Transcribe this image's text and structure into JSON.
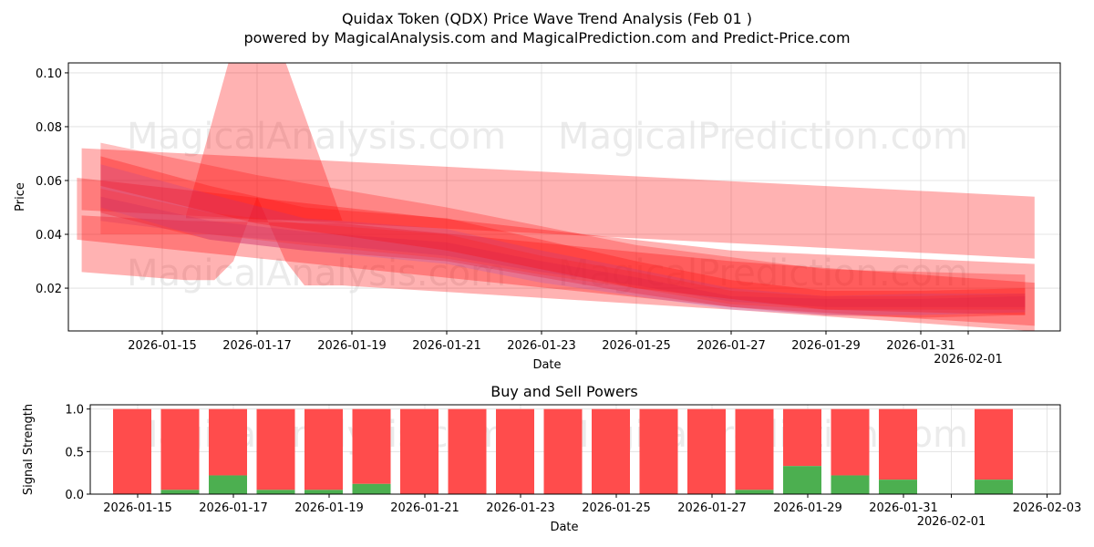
{
  "title": "Quidax Token (QDX) Price Wave Trend Analysis (Feb 01 )",
  "subtitle": "powered by MagicalAnalysis.com and MagicalPrediction.com and Predict-Price.com",
  "watermarks": [
    "MagicalAnalysis.com",
    "MagicalPrediction.com"
  ],
  "chart_data": [
    {
      "type": "area",
      "title": "",
      "xlabel": "Date",
      "ylabel": "Price",
      "ylim": [
        0.0041,
        0.1037
      ],
      "xlim_days_from_2026_01_15": [
        -1.98,
        18.94
      ],
      "yticks": [
        "0.02",
        "0.04",
        "0.06",
        "0.08",
        "0.10"
      ],
      "ytick_values": [
        0.02,
        0.04,
        0.06,
        0.08,
        0.1
      ],
      "xticks": [
        "2026-01-15",
        "2026-01-17",
        "2026-01-19",
        "2026-01-21",
        "2026-01-23",
        "2026-01-25",
        "2026-01-27",
        "2026-01-29",
        "2026-01-31",
        "2026-02-01"
      ],
      "xtick_days": [
        0,
        2,
        4,
        6,
        8,
        10,
        12,
        14,
        16,
        17
      ],
      "grid": true,
      "bands": [
        {
          "color": "#ff0000",
          "alpha": 0.3,
          "upper": [
            [
              -1.7,
              0.072
            ],
            [
              18.4,
              0.054
            ]
          ],
          "lower": [
            [
              18.4,
              0.031
            ],
            [
              -1.7,
              0.049
            ]
          ]
        },
        {
          "color": "#ff0000",
          "alpha": 0.3,
          "upper": [
            [
              -1.8,
              0.061
            ],
            [
              12,
              0.034
            ],
            [
              18.4,
              0.029
            ]
          ],
          "lower": [
            [
              18.4,
              0.006
            ],
            [
              12,
              0.013
            ],
            [
              -1.8,
              0.038
            ]
          ]
        },
        {
          "color": "#ff0000",
          "alpha": 0.3,
          "upper": [
            [
              -1.7,
              0.047
            ],
            [
              0.5,
              0.045
            ],
            [
              3.8,
              0.044
            ],
            [
              12,
              0.03
            ],
            [
              18.4,
              0.022
            ]
          ],
          "lower": [
            [
              18.4,
              0.004
            ],
            [
              12,
              0.012
            ],
            [
              3.8,
              0.021
            ],
            [
              3.0,
              0.021
            ],
            [
              2.6,
              0.03
            ],
            [
              2.0,
              0.054
            ],
            [
              1.5,
              0.03
            ],
            [
              1.1,
              0.023
            ],
            [
              0.5,
              0.023
            ],
            [
              -1.7,
              0.026
            ]
          ]
        },
        {
          "color": "#ff0000",
          "alpha": 0.3,
          "upper": [
            [
              0.5,
              0.047
            ],
            [
              1.4,
              0.104
            ],
            [
              2.6,
              0.104
            ],
            [
              3.8,
              0.045
            ]
          ],
          "lower": [
            [
              3.8,
              0.045
            ],
            [
              0.5,
              0.046
            ]
          ]
        },
        {
          "color": "#ff2020",
          "alpha": 0.35,
          "upper": [
            [
              -1.3,
              0.069
            ],
            [
              1,
              0.058
            ],
            [
              3,
              0.05
            ],
            [
              6,
              0.046
            ],
            [
              8,
              0.038
            ],
            [
              10,
              0.03
            ],
            [
              12,
              0.023
            ],
            [
              14,
              0.019
            ],
            [
              16,
              0.019
            ],
            [
              18.2,
              0.02
            ]
          ],
          "lower": [
            [
              18.2,
              0.01
            ],
            [
              16,
              0.009
            ],
            [
              14,
              0.01
            ],
            [
              12,
              0.013
            ],
            [
              10,
              0.018
            ],
            [
              8,
              0.024
            ],
            [
              6,
              0.03
            ],
            [
              3,
              0.034
            ],
            [
              1,
              0.038
            ],
            [
              -1.3,
              0.048
            ]
          ]
        },
        {
          "color": "#6040ff",
          "alpha": 0.15,
          "upper": [
            [
              -1.3,
              0.066
            ],
            [
              1,
              0.055
            ],
            [
              3,
              0.046
            ],
            [
              6,
              0.042
            ],
            [
              8,
              0.034
            ],
            [
              10,
              0.027
            ],
            [
              12,
              0.02
            ],
            [
              14,
              0.017
            ],
            [
              16,
              0.018
            ],
            [
              18.2,
              0.018
            ]
          ],
          "lower": [
            [
              18.2,
              0.011
            ],
            [
              16,
              0.01
            ],
            [
              14,
              0.01
            ],
            [
              12,
              0.012
            ],
            [
              10,
              0.017
            ],
            [
              8,
              0.022
            ],
            [
              6,
              0.029
            ],
            [
              3,
              0.034
            ],
            [
              1,
              0.038
            ],
            [
              -1.3,
              0.05
            ]
          ]
        },
        {
          "color": "#ff3030",
          "alpha": 0.3,
          "upper": [
            [
              -1.3,
              0.057
            ],
            [
              1,
              0.048
            ],
            [
              3,
              0.044
            ],
            [
              6,
              0.04
            ],
            [
              8,
              0.032
            ],
            [
              10,
              0.026
            ],
            [
              12,
              0.019
            ],
            [
              14,
              0.017
            ],
            [
              16,
              0.017
            ],
            [
              18.2,
              0.018
            ]
          ],
          "lower": [
            [
              18.2,
              0.012
            ],
            [
              16,
              0.012
            ],
            [
              14,
              0.012
            ],
            [
              12,
              0.014
            ],
            [
              10,
              0.02
            ],
            [
              8,
              0.025
            ],
            [
              6,
              0.031
            ],
            [
              3,
              0.036
            ],
            [
              1,
              0.04
            ],
            [
              -1.3,
              0.04
            ]
          ]
        },
        {
          "color": "#c02060",
          "alpha": 0.2,
          "upper": [
            [
              -1.3,
              0.054
            ],
            [
              1,
              0.045
            ],
            [
              3,
              0.041
            ],
            [
              6,
              0.037
            ],
            [
              8,
              0.03
            ],
            [
              10,
              0.024
            ],
            [
              12,
              0.017
            ],
            [
              14,
              0.016
            ],
            [
              16,
              0.016
            ],
            [
              18.2,
              0.017
            ]
          ],
          "lower": [
            [
              18.2,
              0.013
            ],
            [
              16,
              0.013
            ],
            [
              14,
              0.013
            ],
            [
              12,
              0.015
            ],
            [
              10,
              0.021
            ],
            [
              8,
              0.026
            ],
            [
              6,
              0.032
            ],
            [
              3,
              0.037
            ],
            [
              1,
              0.04
            ],
            [
              -1.3,
              0.045
            ]
          ]
        },
        {
          "color": "#ff0000",
          "alpha": 0.25,
          "upper": [
            [
              -1.3,
              0.074
            ],
            [
              2,
              0.062
            ],
            [
              6,
              0.05
            ],
            [
              10,
              0.036
            ],
            [
              14,
              0.027
            ],
            [
              18.2,
              0.025
            ]
          ],
          "lower": [
            [
              18.2,
              0.01
            ],
            [
              14,
              0.012
            ],
            [
              10,
              0.02
            ],
            [
              6,
              0.034
            ],
            [
              2,
              0.044
            ],
            [
              -1.3,
              0.058
            ]
          ]
        }
      ]
    },
    {
      "type": "bar",
      "title": "Buy and Sell Powers",
      "xlabel": "Date",
      "ylabel": "Signal Strength",
      "ylim": [
        0,
        1.05
      ],
      "yticks": [
        "0.0",
        "0.5",
        "1.0"
      ],
      "ytick_values": [
        0,
        0.5,
        1.0
      ],
      "xticks": [
        "2026-01-15",
        "2026-01-17",
        "2026-01-19",
        "2026-01-21",
        "2026-01-23",
        "2026-01-25",
        "2026-01-27",
        "2026-01-29",
        "2026-01-31",
        "2026-02-01",
        "2026-02-03"
      ],
      "xtick_days": [
        0,
        2,
        4,
        6,
        8,
        10,
        12,
        14,
        16,
        17,
        19
      ],
      "bar_days": [
        0,
        1,
        2,
        3,
        4,
        5,
        6,
        7,
        8,
        9,
        10,
        11,
        12,
        13,
        14,
        15,
        16,
        18
      ],
      "buy": [
        0,
        0.05,
        0.22,
        0.05,
        0.05,
        0.12,
        0,
        0,
        0,
        0,
        0,
        0,
        0,
        0.05,
        0.33,
        0.22,
        0.17,
        0.17
      ],
      "sell_total": 1.0,
      "colors": {
        "buy": "#4caf50",
        "sell": "#ff4c4c"
      }
    }
  ]
}
